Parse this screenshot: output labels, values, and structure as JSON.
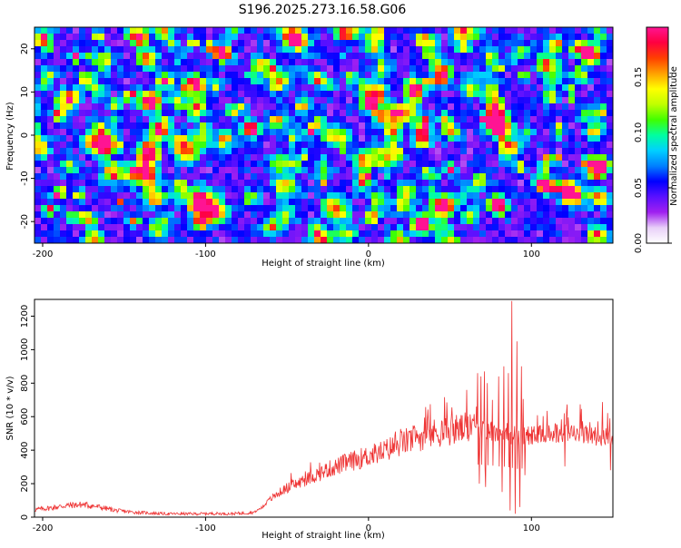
{
  "title": "S196.2025.273.16.58.G06",
  "chart_data": [
    {
      "type": "heatmap",
      "xlabel": "Height of straight line (km)",
      "ylabel": "Frequency (Hz)",
      "xlim": [
        -205,
        150
      ],
      "ylim": [
        -25,
        25
      ],
      "xticks": [
        -200,
        -100,
        0,
        100
      ],
      "yticks": [
        -20,
        -10,
        0,
        10,
        20
      ],
      "colorbar": {
        "label": "Normalized spectral amplitude",
        "range": [
          0,
          0.195
        ],
        "ticks": [
          "0.00",
          "0.05",
          "0.10",
          "0.15"
        ],
        "tick_values": [
          0,
          0.05,
          0.1,
          0.15
        ],
        "colors": [
          "#ffffff",
          "#e8d0f8",
          "#a020f0",
          "#5a10ff",
          "#0000ff",
          "#0080ff",
          "#00d0ff",
          "#00ffa0",
          "#40ff00",
          "#c0ff00",
          "#ffff00",
          "#ffa000",
          "#ff4000",
          "#ff0040",
          "#ff1493"
        ]
      },
      "description": "Noise-like spectrogram, predominantly purple/blue speckle with scattered cyan/green blobs and a few orange/red peaks near x=-70, y=1 and x=50, y=-8 and x=122, y=-12"
    },
    {
      "type": "line",
      "xlabel": "Height of straight line (km)",
      "ylabel": "SNR (10 * v/v)",
      "xlim": [
        -205,
        150
      ],
      "ylim": [
        0,
        1300
      ],
      "xticks": [
        -200,
        -100,
        0,
        100
      ],
      "yticks": [
        0,
        200,
        400,
        600,
        800,
        1000,
        1200
      ],
      "color": "#ee3333",
      "series": [
        {
          "name": "SNR",
          "x": [
            -205,
            -195,
            -185,
            -175,
            -165,
            -155,
            -145,
            -135,
            -125,
            -115,
            -105,
            -95,
            -85,
            -75,
            -70,
            -65,
            -60,
            -55,
            -50,
            -45,
            -40,
            -35,
            -30,
            -25,
            -20,
            -15,
            -10,
            -5,
            0,
            5,
            10,
            15,
            20,
            25,
            30,
            35,
            40,
            45,
            50,
            55,
            60,
            65,
            70,
            75,
            80,
            85,
            88,
            90,
            95,
            100,
            105,
            110,
            115,
            120,
            125,
            130,
            135,
            140,
            145,
            150
          ],
          "y": [
            45,
            55,
            70,
            75,
            60,
            40,
            30,
            25,
            20,
            20,
            20,
            22,
            20,
            25,
            30,
            60,
            110,
            145,
            175,
            195,
            215,
            240,
            260,
            285,
            300,
            320,
            335,
            350,
            365,
            380,
            395,
            420,
            440,
            460,
            475,
            490,
            500,
            510,
            520,
            525,
            530,
            525,
            520,
            515,
            505,
            500,
            490,
            480,
            485,
            490,
            495,
            500,
            505,
            505,
            500,
            495,
            490,
            485,
            480,
            460
          ]
        }
      ],
      "spikes": [
        {
          "x": 67,
          "y": 860
        },
        {
          "x": 69,
          "y": 840
        },
        {
          "x": 71,
          "y": 870
        },
        {
          "x": 73,
          "y": 800
        },
        {
          "x": 76,
          "y": 700
        },
        {
          "x": 80,
          "y": 840
        },
        {
          "x": 83,
          "y": 900
        },
        {
          "x": 86,
          "y": 860
        },
        {
          "x": 88,
          "y": 1290
        },
        {
          "x": 91,
          "y": 1050
        },
        {
          "x": 94,
          "y": 900
        },
        {
          "x": 120,
          "y": 620
        },
        {
          "x": 148,
          "y": 590
        }
      ],
      "dips": [
        {
          "x": 68,
          "y": 200
        },
        {
          "x": 72,
          "y": 180
        },
        {
          "x": 82,
          "y": 150
        },
        {
          "x": 87,
          "y": 40
        },
        {
          "x": 90,
          "y": 20
        },
        {
          "x": 93,
          "y": 60
        },
        {
          "x": 96,
          "y": 250
        }
      ]
    }
  ]
}
